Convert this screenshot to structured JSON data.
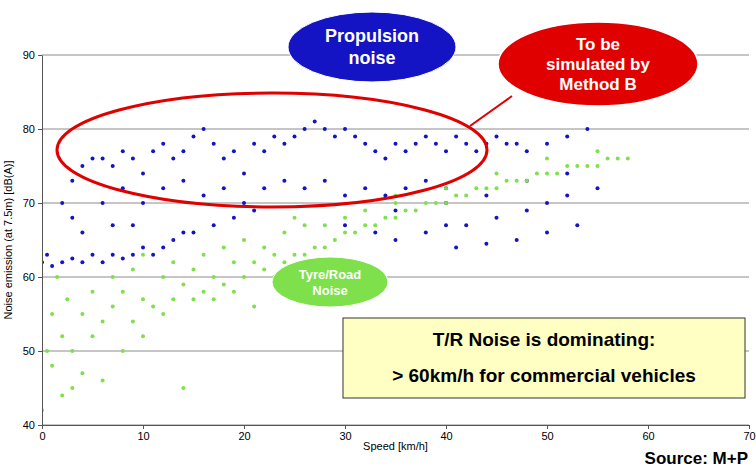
{
  "chart_data": {
    "type": "scatter",
    "x_label": "Speed [km/h]",
    "y_label": "Noise emission (at 7.5m) [dB(A)]",
    "source": "Source: M+P",
    "xlim": [
      0,
      70
    ],
    "xticks": [
      0,
      10,
      20,
      30,
      40,
      50,
      60,
      70
    ],
    "ylim": [
      40,
      90
    ],
    "yticks": [
      40,
      50,
      60,
      70,
      80,
      90
    ],
    "grid": true,
    "series": [
      {
        "name": "Propulsion noise",
        "color": "#1414c4",
        "marker": "circle",
        "x": [
          0,
          0.5,
          1,
          2,
          3,
          4,
          5,
          6,
          7,
          8,
          9,
          10,
          11,
          12,
          13,
          14,
          15,
          17,
          19,
          21,
          2,
          3,
          4,
          5,
          6,
          7,
          8,
          9,
          10,
          11,
          12,
          13,
          14,
          15,
          16,
          17,
          18,
          19,
          20,
          21,
          22,
          23,
          24,
          25,
          26,
          27,
          28,
          29,
          30,
          31,
          32,
          33,
          34,
          35,
          36,
          37,
          38,
          39,
          40,
          41,
          42,
          43,
          44,
          45,
          46,
          47,
          48,
          50,
          52,
          54,
          6,
          8,
          10,
          12,
          14,
          16,
          18,
          20,
          22,
          24,
          26,
          28,
          30,
          32,
          34,
          36,
          38,
          40,
          30,
          33,
          35,
          38,
          40,
          42,
          45,
          48,
          50,
          52,
          55,
          35,
          40,
          44,
          48,
          52,
          41,
          44,
          47,
          50,
          53,
          3,
          4,
          7,
          9
        ],
        "values": [
          62,
          63,
          61.5,
          62,
          62.5,
          62,
          63,
          62,
          63,
          62.5,
          63,
          64,
          63,
          64,
          65,
          66,
          66,
          67,
          68,
          69,
          70,
          73,
          75,
          76,
          76,
          75,
          77,
          76,
          74,
          77,
          78,
          76,
          77,
          79,
          80,
          78,
          76,
          77,
          74,
          78,
          77,
          79,
          78,
          79,
          80,
          81,
          80,
          79,
          80,
          79,
          78,
          77,
          76,
          78,
          77,
          78,
          79,
          78,
          77,
          79,
          78,
          77,
          78,
          79,
          78,
          78,
          77,
          78,
          79,
          80,
          70,
          72,
          70,
          72,
          73,
          71,
          72,
          70,
          72,
          73,
          72,
          73,
          71,
          72,
          71,
          72,
          73,
          72,
          67,
          66,
          65,
          66,
          67,
          67,
          68,
          69,
          70,
          71,
          72,
          69,
          70,
          71,
          73,
          74,
          64,
          64.5,
          65,
          66,
          67,
          68,
          66,
          67,
          67
        ]
      },
      {
        "name": "Tyre/Road Noise",
        "color": "#7ee04a",
        "marker": "circle",
        "x": [
          0,
          0.5,
          1,
          1,
          1.5,
          2,
          2,
          2.5,
          3,
          3,
          4,
          4,
          5,
          5,
          6,
          6,
          7,
          7,
          8,
          8,
          9,
          9,
          10,
          10,
          10,
          11,
          12,
          12,
          13,
          13,
          14,
          14,
          15,
          15,
          16,
          16,
          17,
          17,
          18,
          18,
          19,
          19,
          20,
          20,
          21,
          21,
          22,
          22,
          23,
          23,
          24,
          24,
          25,
          26,
          26,
          27,
          28,
          28,
          29,
          30,
          30,
          31,
          32,
          32,
          33,
          34,
          35,
          35,
          36,
          37,
          38,
          39,
          40,
          40,
          41,
          42,
          43,
          44,
          45,
          46,
          47,
          48,
          49,
          50,
          51,
          52,
          53,
          54,
          55,
          56,
          57,
          58,
          55,
          50,
          45,
          35,
          25
        ],
        "values": [
          42,
          50,
          55,
          48,
          60,
          44,
          52,
          57,
          45,
          50,
          47,
          55,
          52,
          58,
          46,
          54,
          56,
          60,
          50,
          58,
          54,
          61,
          52,
          57,
          63,
          56,
          55,
          60,
          57,
          62,
          45,
          59,
          57,
          61,
          58,
          63,
          57,
          60,
          59,
          64,
          58,
          62,
          60,
          65,
          56,
          62,
          61,
          64,
          60,
          63,
          62,
          66,
          63,
          63,
          67,
          64,
          64,
          67,
          65,
          66,
          68,
          66,
          67,
          69,
          67,
          68,
          68,
          70,
          69,
          69,
          70,
          70,
          70,
          72,
          71,
          71,
          72,
          72,
          72,
          73,
          73,
          73,
          74,
          74,
          74,
          75,
          75,
          75,
          75,
          76,
          76,
          76,
          77,
          76,
          74,
          71,
          68
        ]
      }
    ],
    "annotations": [
      {
        "text": [
          "To be",
          "simulated by",
          "Method B"
        ]
      },
      {
        "text": [
          "T/R Noise is dominating:",
          "> 60km/h for commercial vehicles"
        ]
      }
    ]
  }
}
